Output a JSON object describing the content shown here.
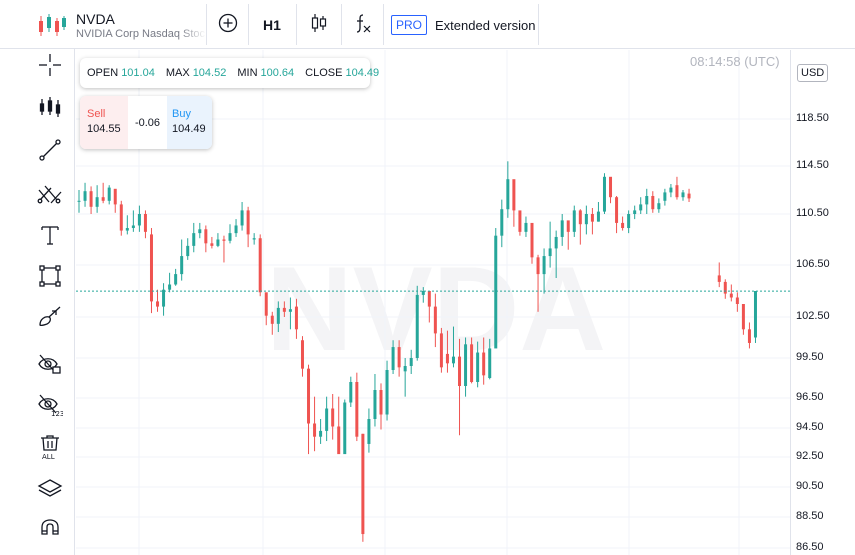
{
  "header": {
    "symbol": "NVDA",
    "description": "NVIDIA Corp Nasdaq Stock",
    "timeframe": "H1",
    "pro_badge": "PRO",
    "extended_label": "Extended version",
    "icons": [
      "logo-icon",
      "add-compare-icon",
      "candlestick-icon",
      "indicators-fx-icon"
    ]
  },
  "ohlc": {
    "open_label": "OPEN",
    "open": "101.04",
    "max_label": "MAX",
    "max": "104.52",
    "min_label": "MIN",
    "min": "100.64",
    "close_label": "CLOSE",
    "close": "104.49"
  },
  "trade": {
    "sell_label": "Sell",
    "sell_price": "104.55",
    "spread": "-0.06",
    "buy_label": "Buy",
    "buy_price": "104.49"
  },
  "time": "08:14:58 (UTC)",
  "currency": "USD",
  "watermark": "NVDA",
  "left_tools": [
    "crosshair-icon",
    "indicators-icon",
    "trend-line-icon",
    "fib-tool-icon",
    "text-tool-icon",
    "rectangle-tool-icon",
    "brush-tool-icon",
    "hide-drawings-icon",
    "hide-indicators-icon",
    "remove-all-icon",
    "layers-icon",
    "magnet-icon"
  ],
  "colors": {
    "up": "#26a69a",
    "down": "#ef5350",
    "accent": "#2962ff",
    "price_line": "#26a69a"
  },
  "chart_data": {
    "type": "candlestick",
    "yticks": [
      "118.50",
      "114.50",
      "110.50",
      "106.50",
      "102.50",
      "99.50",
      "96.50",
      "94.50",
      "92.50",
      "90.50",
      "88.50",
      "86.50"
    ],
    "ylim": [
      86.5,
      122.2
    ],
    "current_price": 104.49,
    "grid": true,
    "candles": [
      [
        111.6,
        111.6,
        112.5,
        110.6
      ],
      [
        111.6,
        112.4,
        113.1,
        111.1
      ],
      [
        112.4,
        111.1,
        112.8,
        110.5
      ],
      [
        111.1,
        111.9,
        112.9,
        110.6
      ],
      [
        111.9,
        111.6,
        113.1,
        111.4
      ],
      [
        111.6,
        112.7,
        112.9,
        111.3
      ],
      [
        112.6,
        111.3,
        112.3,
        110.6
      ],
      [
        111.3,
        109.2,
        111.6,
        108.8
      ],
      [
        109.2,
        109.4,
        110.4,
        108.9
      ],
      [
        109.4,
        109.6,
        110.8,
        109.1
      ],
      [
        109.6,
        110.5,
        111.2,
        109.1
      ],
      [
        110.5,
        109.1,
        110.8,
        108.6
      ],
      [
        108.9,
        103.7,
        109.4,
        102.8
      ],
      [
        103.7,
        103.3,
        104.6,
        102.9
      ],
      [
        103.3,
        104.6,
        105.1,
        102.6
      ],
      [
        104.6,
        105.0,
        105.9,
        104.4
      ],
      [
        105.0,
        105.8,
        106.2,
        104.9
      ],
      [
        105.8,
        107.2,
        108.5,
        105.3
      ],
      [
        107.2,
        108.0,
        108.6,
        106.9
      ],
      [
        108.0,
        109.0,
        109.8,
        107.5
      ],
      [
        109.0,
        109.3,
        109.8,
        108.6
      ],
      [
        109.3,
        108.2,
        109.6,
        107.5
      ],
      [
        108.2,
        108.0,
        108.7,
        107.8
      ],
      [
        108.0,
        108.5,
        109.0,
        107.9
      ],
      [
        108.5,
        108.4,
        108.8,
        106.7
      ],
      [
        108.4,
        109.0,
        109.7,
        108.2
      ],
      [
        109.0,
        109.6,
        110.1,
        108.7
      ],
      [
        109.6,
        110.8,
        111.5,
        109.2
      ],
      [
        110.8,
        108.9,
        111.1,
        107.9
      ],
      [
        108.5,
        108.6,
        109.0,
        108.1
      ],
      [
        108.6,
        104.4,
        108.9,
        104.1
      ],
      [
        104.4,
        102.6,
        103.9,
        101.9
      ],
      [
        102.6,
        102.0,
        102.9,
        101.2
      ],
      [
        102.0,
        103.2,
        103.7,
        101.4
      ],
      [
        103.2,
        102.9,
        103.7,
        102.5
      ],
      [
        102.9,
        103.1,
        104.0,
        101.6
      ],
      [
        103.3,
        101.6,
        103.9,
        100.9
      ],
      [
        100.8,
        98.7,
        101.1,
        98.1
      ],
      [
        98.7,
        94.8,
        99.0,
        92.7
      ],
      [
        94.8,
        93.9,
        96.6,
        92.9
      ],
      [
        93.9,
        94.3,
        95.1,
        93.4
      ],
      [
        94.3,
        95.8,
        96.6,
        93.6
      ],
      [
        95.8,
        94.6,
        96.8,
        93.7
      ],
      [
        94.6,
        92.7,
        96.6,
        93.0
      ],
      [
        92.7,
        96.2,
        96.4,
        94.4
      ],
      [
        96.2,
        97.7,
        98.1,
        95.9
      ],
      [
        97.7,
        93.9,
        98.4,
        93.6
      ],
      [
        94.1,
        87.4,
        94.1,
        86.9
      ],
      [
        93.4,
        95.1,
        95.8,
        92.8
      ],
      [
        95.1,
        97.1,
        98.3,
        94.6
      ],
      [
        97.1,
        95.4,
        97.6,
        94.4
      ],
      [
        95.4,
        98.6,
        99.3,
        95.0
      ],
      [
        98.6,
        100.3,
        100.8,
        98.3
      ],
      [
        100.3,
        98.8,
        100.8,
        98.1
      ],
      [
        98.5,
        98.9,
        99.5,
        96.6
      ],
      [
        98.9,
        99.5,
        100.1,
        98.3
      ],
      [
        99.5,
        104.2,
        104.9,
        99.3
      ],
      [
        104.2,
        104.5,
        104.8,
        103.6
      ],
      [
        104.5,
        103.3,
        103.9,
        102.1
      ],
      [
        103.3,
        101.3,
        104.3,
        100.3
      ],
      [
        101.3,
        98.8,
        101.7,
        98.4
      ],
      [
        99.8,
        99.1,
        101.5,
        98.4
      ],
      [
        99.1,
        99.6,
        101.8,
        98.8
      ],
      [
        99.6,
        97.4,
        100.9,
        94.0
      ],
      [
        97.4,
        100.5,
        101.0,
        96.6
      ],
      [
        100.5,
        97.7,
        101.0,
        97.6
      ],
      [
        97.7,
        99.9,
        100.7,
        97.3
      ],
      [
        99.9,
        98.2,
        101.0,
        97.5
      ],
      [
        98.0,
        100.2,
        100.9,
        97.9
      ],
      [
        100.2,
        108.8,
        109.4,
        100.6
      ],
      [
        108.8,
        110.9,
        111.7,
        107.9
      ],
      [
        110.9,
        113.4,
        114.9,
        110.2
      ],
      [
        113.4,
        110.8,
        112.5,
        109.5
      ],
      [
        110.8,
        109.1,
        109.7,
        108.8
      ],
      [
        109.1,
        109.8,
        110.3,
        108.7
      ],
      [
        109.8,
        107.1,
        108.9,
        106.6
      ],
      [
        107.1,
        105.8,
        107.3,
        102.9
      ],
      [
        105.8,
        107.2,
        107.8,
        104.3
      ],
      [
        107.2,
        107.8,
        109.9,
        106.3
      ],
      [
        107.8,
        108.7,
        109.2,
        105.5
      ],
      [
        108.7,
        110.0,
        110.5,
        108.0
      ],
      [
        110.0,
        109.1,
        109.3,
        107.7
      ],
      [
        109.1,
        110.8,
        111.2,
        108.7
      ],
      [
        110.8,
        109.7,
        110.9,
        108.1
      ],
      [
        109.7,
        110.5,
        111.2,
        108.9
      ],
      [
        110.5,
        109.9,
        111.0,
        108.9
      ],
      [
        109.9,
        110.7,
        111.5,
        109.9
      ],
      [
        110.7,
        113.6,
        113.9,
        110.5
      ],
      [
        113.6,
        111.9,
        113.2,
        111.4
      ],
      [
        111.9,
        109.8,
        112.0,
        109.0
      ],
      [
        109.8,
        109.4,
        110.3,
        109.2
      ],
      [
        109.4,
        110.5,
        110.8,
        109.0
      ],
      [
        110.5,
        110.8,
        111.2,
        110.1
      ],
      [
        110.8,
        111.3,
        111.9,
        110.5
      ],
      [
        111.3,
        112.0,
        112.6,
        110.5
      ],
      [
        112.0,
        110.9,
        112.4,
        110.6
      ],
      [
        110.9,
        111.4,
        111.8,
        110.6
      ],
      [
        111.6,
        112.3,
        112.6,
        111.2
      ],
      [
        112.3,
        112.7,
        113.0,
        111.9
      ],
      [
        112.9,
        111.9,
        113.6,
        111.7
      ],
      [
        111.9,
        112.3,
        112.5,
        111.6
      ],
      [
        112.2,
        111.8,
        112.6,
        111.5
      ],
      null,
      null,
      null,
      null,
      [
        105.7,
        105.2,
        106.7,
        104.8
      ],
      [
        105.2,
        104.3,
        105.4,
        103.9
      ],
      [
        104.3,
        104.0,
        105.0,
        103.7
      ],
      [
        104.0,
        103.5,
        104.4,
        102.9
      ],
      [
        103.5,
        101.6,
        103.5,
        101.2
      ],
      [
        101.6,
        100.6,
        102.1,
        100.2
      ],
      [
        101.0,
        104.5,
        104.5,
        100.6
      ]
    ]
  }
}
